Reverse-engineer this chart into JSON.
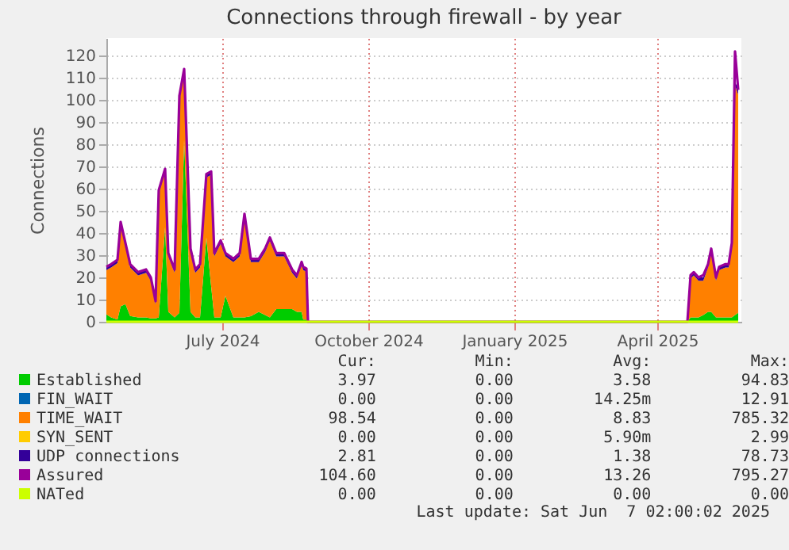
{
  "chart_data": {
    "type": "area",
    "title": "Connections through firewall - by year",
    "ylabel": "Connections",
    "stacked": true,
    "grid": true,
    "legend": "bottom",
    "xlim": [
      "2024-04-19",
      "2025-05-24"
    ],
    "ylim": [
      0,
      128
    ],
    "xticks": [
      {
        "value": "2024-07-01",
        "label": "July 2024"
      },
      {
        "value": "2024-10-01",
        "label": "October 2024"
      },
      {
        "value": "2025-01-01",
        "label": "January 2025"
      },
      {
        "value": "2025-04-01",
        "label": "April 2025"
      }
    ],
    "yticks": [
      0,
      10,
      20,
      30,
      40,
      50,
      60,
      70,
      80,
      90,
      100,
      110,
      120
    ],
    "x": [
      "2024-04-19",
      "2024-04-22",
      "2024-04-26",
      "2024-04-28",
      "2024-05-01",
      "2024-05-04",
      "2024-05-09",
      "2024-05-14",
      "2024-05-17",
      "2024-05-20",
      "2024-05-22",
      "2024-05-26",
      "2024-05-28",
      "2024-06-01",
      "2024-06-04",
      "2024-06-07",
      "2024-06-11",
      "2024-06-14",
      "2024-06-17",
      "2024-06-21",
      "2024-06-24",
      "2024-06-26",
      "2024-06-30",
      "2024-07-03",
      "2024-07-08",
      "2024-07-12",
      "2024-07-15",
      "2024-07-19",
      "2024-07-24",
      "2024-07-28",
      "2024-07-31",
      "2024-08-04",
      "2024-08-09",
      "2024-08-14",
      "2024-08-17",
      "2024-08-20",
      "2024-08-21",
      "2024-08-23",
      "2024-08-24",
      "2025-04-20",
      "2025-04-22",
      "2025-04-24",
      "2025-04-27",
      "2025-04-30",
      "2025-05-03",
      "2025-05-05",
      "2025-05-08",
      "2025-05-10",
      "2025-05-14",
      "2025-05-16",
      "2025-05-18",
      "2025-05-20",
      "2025-05-22"
    ],
    "series": [
      {
        "name": "Established",
        "type": "area",
        "color": "#00cc00",
        "values": [
          3.3,
          2,
          1,
          7,
          8,
          2.6,
          2,
          2,
          1.5,
          1.5,
          2,
          42.7,
          4.5,
          2,
          4,
          82,
          4.5,
          2,
          2,
          38,
          16,
          2,
          2,
          11.7,
          2,
          2,
          2,
          2.5,
          4.5,
          3,
          2,
          5.7,
          5.7,
          5.7,
          4.5,
          4.5,
          1,
          1,
          0,
          0,
          2,
          2,
          2,
          3,
          4.5,
          4.5,
          2,
          2,
          2,
          2,
          2,
          3,
          4
        ]
      },
      {
        "name": "FIN_WAIT",
        "type": "area",
        "color": "#0066b3",
        "values": [
          null,
          null,
          null,
          null,
          null,
          null,
          null,
          null,
          null,
          null,
          null,
          null,
          null,
          null,
          null,
          null,
          null,
          null,
          null,
          null,
          null,
          null,
          null,
          null,
          null,
          null,
          null,
          null,
          null,
          null,
          null,
          null,
          null,
          null,
          null,
          null,
          null,
          null,
          null,
          null,
          null,
          null,
          null,
          null,
          null,
          null,
          null,
          null,
          null,
          null,
          null,
          null,
          null
        ]
      },
      {
        "name": "TIME_WAIT",
        "type": "area",
        "color": "#ff8000",
        "values": [
          20,
          22.5,
          25.5,
          36.5,
          26,
          21.9,
          18.9,
          20.1,
          17,
          6.3,
          55.9,
          24.8,
          25,
          20.1,
          96.5,
          30.5,
          27,
          20.1,
          22.5,
          27.1,
          50.3,
          27.5,
          33.2,
          17.8,
          24.9,
          27.5,
          45.2,
          24.4,
          22.4,
          28.5,
          34.5,
          23.8,
          23.8,
          16.4,
          15,
          21,
          22.3,
          21.5,
          0,
          0,
          17.5,
          18.9,
          16.5,
          15.5,
          20,
          27,
          16.5,
          21.3,
          22.5,
          22.5,
          32.1,
          103.6,
          98.5
        ]
      },
      {
        "name": "SYN_SENT",
        "type": "area",
        "color": "#ffcc00",
        "values": [
          null,
          null,
          null,
          null,
          null,
          null,
          null,
          null,
          null,
          null,
          null,
          null,
          null,
          null,
          null,
          null,
          null,
          null,
          null,
          null,
          null,
          null,
          null,
          null,
          null,
          null,
          null,
          null,
          null,
          null,
          null,
          null,
          null,
          null,
          null,
          null,
          null,
          null,
          null,
          null,
          null,
          null,
          null,
          null,
          null,
          null,
          null,
          null,
          null,
          null,
          null,
          null,
          null
        ]
      },
      {
        "name": "UDP connections",
        "type": "area",
        "color": "#330099",
        "values": [
          1.5,
          1.5,
          1.5,
          1.5,
          1.5,
          1.5,
          1.5,
          1.5,
          1.5,
          1.5,
          1.5,
          1.5,
          1.5,
          1.5,
          1.5,
          1.5,
          1.5,
          1.5,
          1.5,
          1.5,
          1.5,
          1.5,
          1.5,
          1.5,
          1.5,
          1.5,
          1.5,
          1.5,
          1.5,
          1.5,
          1.5,
          1.5,
          1.5,
          1.5,
          1.5,
          1.5,
          1.5,
          1.5,
          0,
          0,
          1.5,
          1.5,
          1.5,
          1.5,
          1.5,
          1.5,
          1.5,
          1.5,
          1.5,
          1.5,
          1.5,
          1.5,
          2.8
        ]
      },
      {
        "name": "Assured",
        "type": "line",
        "color": "#990099",
        "values": [
          24.8,
          26,
          28,
          45,
          35.5,
          26,
          22.4,
          23.6,
          20,
          9.3,
          59.4,
          69,
          31,
          23.6,
          102,
          114,
          33,
          23.6,
          26,
          66.6,
          67.8,
          31,
          36.7,
          31,
          28.4,
          31,
          48.7,
          28.4,
          28.4,
          33,
          38,
          31,
          31,
          23.6,
          21,
          27,
          24.8,
          24,
          0,
          0,
          21,
          22.4,
          20,
          21,
          26,
          33,
          20,
          24.8,
          26,
          26,
          35.6,
          122,
          104.6
        ]
      },
      {
        "name": "NATed",
        "type": "line",
        "color": "#ccff00",
        "values": [
          0,
          0,
          0,
          0,
          0,
          0,
          0,
          0,
          0,
          0,
          0,
          0,
          0,
          0,
          0,
          0,
          0,
          0,
          0,
          0,
          0,
          0,
          0,
          0,
          0,
          0,
          0,
          0,
          0,
          0,
          0,
          0,
          0,
          0,
          0,
          0,
          0,
          0,
          0,
          0,
          0,
          0,
          0,
          0,
          0,
          0,
          0,
          0,
          0,
          0,
          0,
          0,
          0
        ]
      }
    ],
    "annotations": [
      "Cur:",
      "Min:",
      "Avg:",
      "Max:",
      "3.97",
      "0.00",
      "3.58",
      "94.83",
      "0.00",
      "0.00",
      "14.25m",
      "12.91",
      "98.54",
      "0.00",
      "8.83",
      "785.32",
      "0.00",
      "0.00",
      "5.90m",
      "2.99",
      "2.81",
      "0.00",
      "1.38",
      "78.73",
      "104.60",
      "0.00",
      "13.26",
      "795.27",
      "0.00",
      "0.00",
      "0.00",
      "0.00",
      "Last update: Sat Jun  7 02:00:02 2025"
    ]
  }
}
